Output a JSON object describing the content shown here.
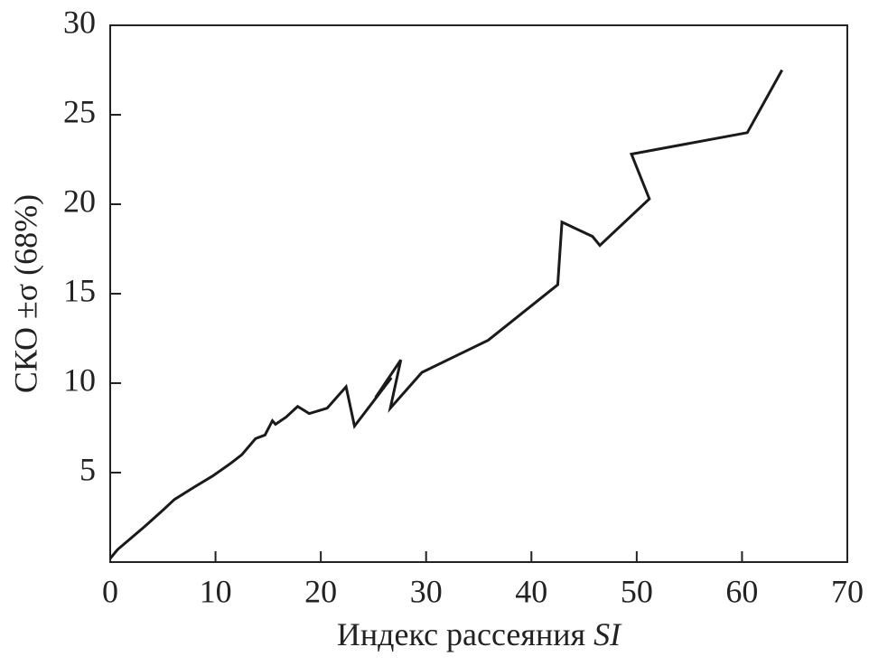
{
  "chart_data": {
    "type": "line",
    "xlabel": {
      "text": "Индекс рассеяния",
      "symbol": "SI"
    },
    "ylabel": "СКО ±σ (68%)",
    "xlim": [
      0,
      70
    ],
    "ylim": [
      0,
      30
    ],
    "xticks": [
      0,
      10,
      20,
      30,
      40,
      50,
      60,
      70
    ],
    "yticks": [
      5,
      10,
      15,
      20,
      25,
      30
    ],
    "grid": false,
    "series": [
      {
        "color": "#1a1a1a",
        "x": [
          0,
          0.7,
          3.3,
          5,
          6.1,
          8,
          9.7,
          11.4,
          12.5,
          13.8,
          14.7,
          15.4,
          15.7,
          16.7,
          17.8,
          18.9,
          20.6,
          22.4,
          23.2,
          26.7,
          25.2,
          27.6,
          26.6,
          29.6,
          35.9,
          42.5,
          42.9,
          45.8,
          46.5,
          51.2,
          49.5,
          60.5,
          63.8
        ],
        "values": [
          0.2,
          0.7,
          2.0,
          2.9,
          3.5,
          4.2,
          4.8,
          5.5,
          6.0,
          6.9,
          7.1,
          7.9,
          7.7,
          8.1,
          8.7,
          8.3,
          8.6,
          9.8,
          7.6,
          10.3,
          9.2,
          11.3,
          8.6,
          10.6,
          12.4,
          15.5,
          19.0,
          18.2,
          17.7,
          20.3,
          22.8,
          24.0,
          27.5
        ]
      }
    ]
  }
}
